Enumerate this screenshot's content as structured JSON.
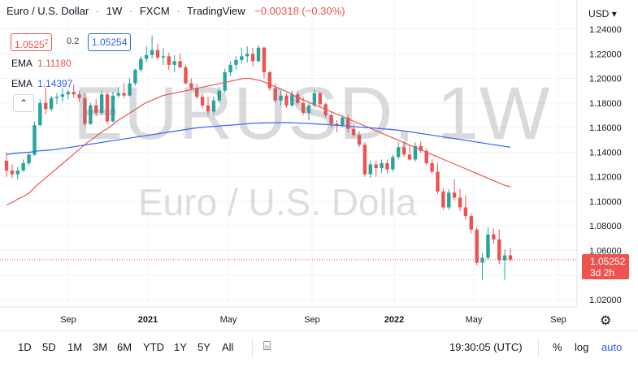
{
  "header": {
    "symbol": "Euro / U.S. Dollar",
    "sep1": "·",
    "interval": "1W",
    "sep2": "·",
    "exchange": "FXCM",
    "sep3": "·",
    "source": "TradingView",
    "change": "−0.00318 (−0.30%)"
  },
  "quote": {
    "bid": "1.0525",
    "bid_sup": "2",
    "spread": "0.2",
    "ask": "1.05254"
  },
  "ema_legend": [
    {
      "label": "EMA",
      "value": "1.11180",
      "color": "#ef5350"
    },
    {
      "label": "EMA",
      "value": "1.14397",
      "color": "#2962ff"
    }
  ],
  "collapse_icon": "chevron-up-icon",
  "watermark": {
    "ticker": "EURUSD, 1W",
    "name": "Euro / U.S. Dolla"
  },
  "currency_selector": "USD",
  "last_price": {
    "value": "1.05252",
    "countdown": "3d 2h",
    "color": "#ef5350"
  },
  "colors": {
    "up": "#26a69a",
    "down": "#ef5350",
    "ema_red": "#ef5350",
    "ema_blue": "#2962ff"
  },
  "timeframes": [
    "1D",
    "5D",
    "1M",
    "3M",
    "6M",
    "YTD",
    "1Y",
    "5Y",
    "All"
  ],
  "compare_icon": "calendar-range-icon",
  "settings_icon": "gear-icon",
  "toolbar_right": {
    "clock": "19:30:05 (UTC)",
    "percent": "%",
    "log": "log",
    "auto": "auto"
  },
  "chart_data": {
    "type": "candlestick",
    "title": "Euro / U.S. Dollar · 1W · FXCM",
    "x_tick_labels": [
      "Sep",
      "2021",
      "May",
      "Sep",
      "2022",
      "May",
      "Sep"
    ],
    "y_tick_labels": [
      "1.24000",
      "1.22000",
      "1.20000",
      "1.18000",
      "1.16000",
      "1.14000",
      "1.12000",
      "1.10000",
      "1.08000",
      "1.06000",
      "1.04000",
      "1.02000"
    ],
    "ylim": [
      1.012,
      1.243
    ],
    "grid": true,
    "candles_ohlc": [
      [
        1.133,
        1.14,
        1.12,
        1.125
      ],
      [
        1.125,
        1.13,
        1.119,
        1.122
      ],
      [
        1.122,
        1.128,
        1.118,
        1.125
      ],
      [
        1.125,
        1.134,
        1.124,
        1.131
      ],
      [
        1.131,
        1.139,
        1.129,
        1.138
      ],
      [
        1.138,
        1.165,
        1.137,
        1.162
      ],
      [
        1.162,
        1.183,
        1.161,
        1.18
      ],
      [
        1.18,
        1.192,
        1.171,
        1.175
      ],
      [
        1.175,
        1.186,
        1.173,
        1.184
      ],
      [
        1.184,
        1.188,
        1.179,
        1.185
      ],
      [
        1.185,
        1.192,
        1.181,
        1.187
      ],
      [
        1.187,
        1.191,
        1.183,
        1.189
      ],
      [
        1.189,
        1.195,
        1.184,
        1.187
      ],
      [
        1.187,
        1.19,
        1.181,
        1.184
      ],
      [
        1.184,
        1.188,
        1.161,
        1.163
      ],
      [
        1.163,
        1.18,
        1.162,
        1.178
      ],
      [
        1.178,
        1.183,
        1.169,
        1.172
      ],
      [
        1.172,
        1.19,
        1.17,
        1.187
      ],
      [
        1.187,
        1.189,
        1.163,
        1.165
      ],
      [
        1.165,
        1.189,
        1.164,
        1.186
      ],
      [
        1.186,
        1.193,
        1.184,
        1.188
      ],
      [
        1.188,
        1.196,
        1.184,
        1.186
      ],
      [
        1.186,
        1.2,
        1.185,
        1.196
      ],
      [
        1.196,
        1.208,
        1.194,
        1.207
      ],
      [
        1.207,
        1.218,
        1.205,
        1.216
      ],
      [
        1.216,
        1.226,
        1.213,
        1.219
      ],
      [
        1.219,
        1.235,
        1.216,
        1.223
      ],
      [
        1.223,
        1.228,
        1.215,
        1.217
      ],
      [
        1.217,
        1.225,
        1.211,
        1.218
      ],
      [
        1.218,
        1.221,
        1.207,
        1.211
      ],
      [
        1.211,
        1.219,
        1.205,
        1.214
      ],
      [
        1.214,
        1.22,
        1.208,
        1.209
      ],
      [
        1.209,
        1.211,
        1.195,
        1.196
      ],
      [
        1.196,
        1.2,
        1.19,
        1.192
      ],
      [
        1.192,
        1.196,
        1.183,
        1.185
      ],
      [
        1.185,
        1.188,
        1.176,
        1.178
      ],
      [
        1.178,
        1.185,
        1.17,
        1.173
      ],
      [
        1.173,
        1.185,
        1.171,
        1.182
      ],
      [
        1.182,
        1.193,
        1.18,
        1.19
      ],
      [
        1.19,
        1.208,
        1.188,
        1.205
      ],
      [
        1.205,
        1.214,
        1.202,
        1.211
      ],
      [
        1.211,
        1.218,
        1.207,
        1.215
      ],
      [
        1.215,
        1.225,
        1.212,
        1.218
      ],
      [
        1.218,
        1.226,
        1.213,
        1.22
      ],
      [
        1.22,
        1.225,
        1.21,
        1.214
      ],
      [
        1.214,
        1.227,
        1.213,
        1.225
      ],
      [
        1.225,
        1.226,
        1.2,
        1.205
      ],
      [
        1.205,
        1.206,
        1.19,
        1.192
      ],
      [
        1.192,
        1.196,
        1.18,
        1.182
      ],
      [
        1.182,
        1.19,
        1.178,
        1.186
      ],
      [
        1.186,
        1.188,
        1.176,
        1.178
      ],
      [
        1.178,
        1.19,
        1.177,
        1.187
      ],
      [
        1.187,
        1.19,
        1.178,
        1.18
      ],
      [
        1.18,
        1.185,
        1.17,
        1.172
      ],
      [
        1.172,
        1.18,
        1.166,
        1.178
      ],
      [
        1.178,
        1.191,
        1.176,
        1.188
      ],
      [
        1.188,
        1.189,
        1.177,
        1.179
      ],
      [
        1.179,
        1.18,
        1.168,
        1.17
      ],
      [
        1.17,
        1.172,
        1.16,
        1.163
      ],
      [
        1.163,
        1.166,
        1.156,
        1.162
      ],
      [
        1.162,
        1.17,
        1.16,
        1.168
      ],
      [
        1.168,
        1.17,
        1.156,
        1.159
      ],
      [
        1.159,
        1.164,
        1.152,
        1.154
      ],
      [
        1.154,
        1.157,
        1.144,
        1.146
      ],
      [
        1.146,
        1.148,
        1.12,
        1.122
      ],
      [
        1.122,
        1.133,
        1.119,
        1.13
      ],
      [
        1.13,
        1.133,
        1.12,
        1.127
      ],
      [
        1.127,
        1.134,
        1.123,
        1.131
      ],
      [
        1.131,
        1.134,
        1.123,
        1.126
      ],
      [
        1.126,
        1.138,
        1.124,
        1.136
      ],
      [
        1.136,
        1.148,
        1.134,
        1.144
      ],
      [
        1.144,
        1.148,
        1.136,
        1.138
      ],
      [
        1.138,
        1.146,
        1.133,
        1.134
      ],
      [
        1.134,
        1.148,
        1.132,
        1.145
      ],
      [
        1.145,
        1.149,
        1.139,
        1.141
      ],
      [
        1.141,
        1.143,
        1.129,
        1.131
      ],
      [
        1.131,
        1.134,
        1.122,
        1.124
      ],
      [
        1.124,
        1.131,
        1.106,
        1.108
      ],
      [
        1.108,
        1.111,
        1.093,
        1.095
      ],
      [
        1.095,
        1.11,
        1.093,
        1.107
      ],
      [
        1.107,
        1.118,
        1.101,
        1.103
      ],
      [
        1.103,
        1.11,
        1.092,
        1.095
      ],
      [
        1.095,
        1.105,
        1.085,
        1.088
      ],
      [
        1.088,
        1.09,
        1.074,
        1.077
      ],
      [
        1.077,
        1.079,
        1.048,
        1.05
      ],
      [
        1.05,
        1.058,
        1.036,
        1.054
      ],
      [
        1.054,
        1.079,
        1.052,
        1.073
      ],
      [
        1.073,
        1.078,
        1.065,
        1.069
      ],
      [
        1.069,
        1.077,
        1.049,
        1.052
      ],
      [
        1.052,
        1.061,
        1.036,
        1.056
      ],
      [
        1.056,
        1.062,
        1.051,
        1.0525
      ]
    ],
    "series": [
      {
        "name": "EMA",
        "last": 1.1118,
        "color": "#ef5350",
        "values": [
          1.097,
          1.099,
          1.102,
          1.104,
          1.107,
          1.112,
          1.116,
          1.12,
          1.124,
          1.128,
          1.132,
          1.136,
          1.14,
          1.144,
          1.148,
          1.151,
          1.155,
          1.158,
          1.161,
          1.165,
          1.168,
          1.171,
          1.174,
          1.177,
          1.18,
          1.182,
          1.184,
          1.186,
          1.187,
          1.188,
          1.189,
          1.19,
          1.191,
          1.192,
          1.193,
          1.194,
          1.195,
          1.196,
          1.197,
          1.198,
          1.199,
          1.2,
          1.2,
          1.199,
          1.198,
          1.196,
          1.194,
          1.192,
          1.19,
          1.188,
          1.185,
          1.183,
          1.181,
          1.179,
          1.177,
          1.175,
          1.173,
          1.171,
          1.169,
          1.167,
          1.165,
          1.163,
          1.161,
          1.159,
          1.157,
          1.155,
          1.153,
          1.151,
          1.149,
          1.147,
          1.145,
          1.143,
          1.141,
          1.139,
          1.137,
          1.135,
          1.133,
          1.131,
          1.129,
          1.127,
          1.125,
          1.123,
          1.121,
          1.119,
          1.117,
          1.115,
          1.113,
          1.1118
        ]
      },
      {
        "name": "EMA",
        "last": 1.14397,
        "color": "#2962ff",
        "values": [
          1.138,
          1.139,
          1.1395,
          1.14,
          1.141,
          1.1415,
          1.142,
          1.143,
          1.144,
          1.145,
          1.146,
          1.147,
          1.148,
          1.149,
          1.15,
          1.151,
          1.152,
          1.153,
          1.154,
          1.155,
          1.156,
          1.157,
          1.158,
          1.159,
          1.16,
          1.1605,
          1.161,
          1.1615,
          1.162,
          1.1625,
          1.163,
          1.1635,
          1.1637,
          1.1638,
          1.164,
          1.164,
          1.1638,
          1.1635,
          1.1632,
          1.1628,
          1.1625,
          1.162,
          1.1615,
          1.161,
          1.1605,
          1.16,
          1.1595,
          1.159,
          1.1585,
          1.1578,
          1.157,
          1.156,
          1.155,
          1.154,
          1.153,
          1.152,
          1.151,
          1.15,
          1.149,
          1.148,
          1.147,
          1.146,
          1.145,
          1.144
        ]
      }
    ]
  }
}
